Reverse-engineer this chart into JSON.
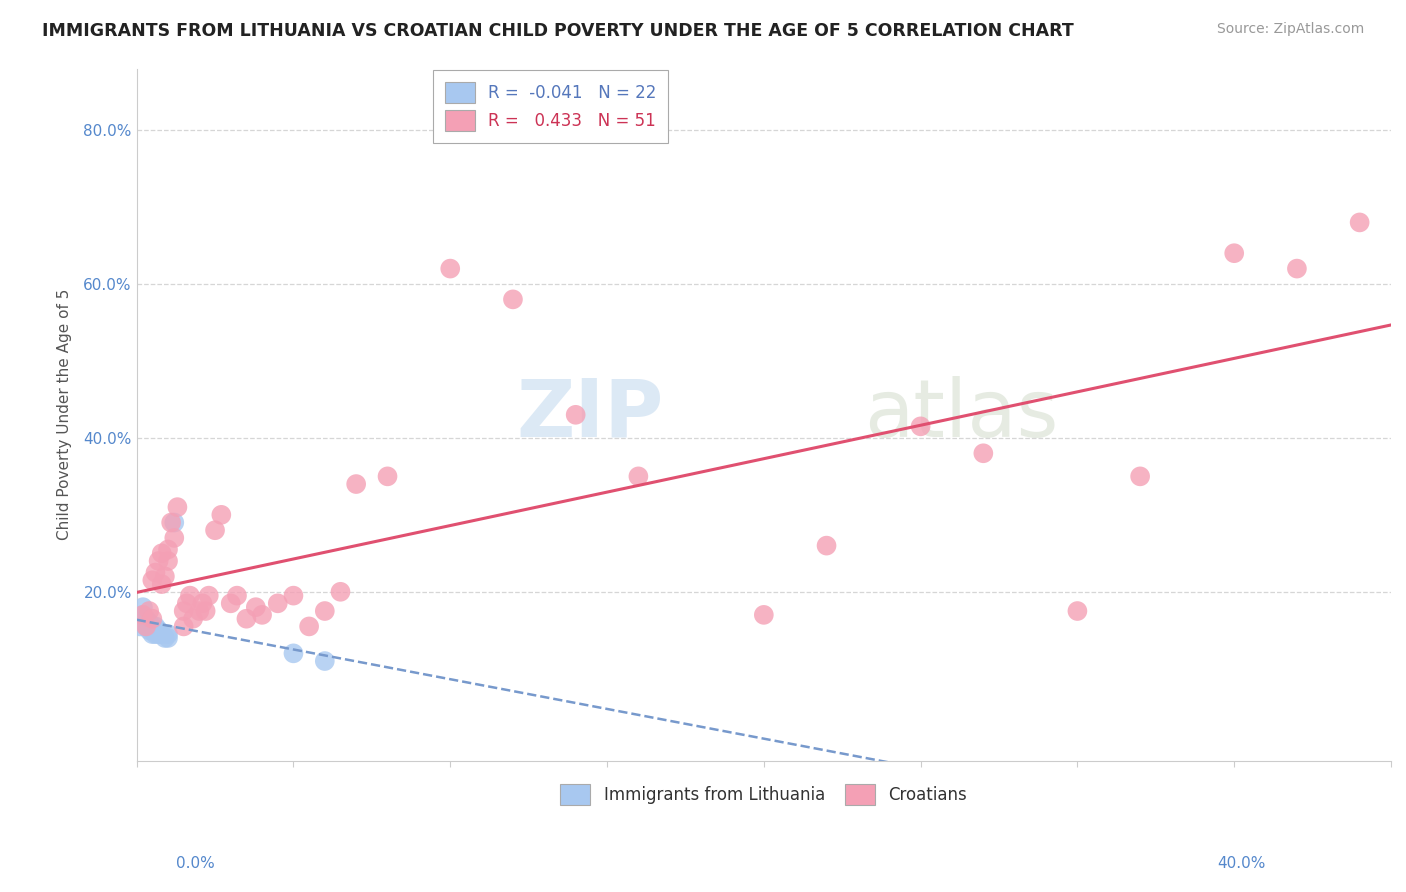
{
  "title": "IMMIGRANTS FROM LITHUANIA VS CROATIAN CHILD POVERTY UNDER THE AGE OF 5 CORRELATION CHART",
  "source": "Source: ZipAtlas.com",
  "ylabel": "Child Poverty Under the Age of 5",
  "yticks": [
    "20.0%",
    "40.0%",
    "60.0%",
    "80.0%"
  ],
  "ytick_vals": [
    0.2,
    0.4,
    0.6,
    0.8
  ],
  "xlim": [
    0.0,
    0.4
  ],
  "ylim": [
    -0.02,
    0.88
  ],
  "legend_entry1": "R =  -0.041   N = 22",
  "legend_entry2": "R =   0.433   N = 51",
  "watermark_zip": "ZIP",
  "watermark_atlas": "atlas",
  "blue_color": "#a8c8f0",
  "pink_color": "#f4a0b5",
  "blue_line_color": "#7799cc",
  "pink_line_color": "#e05070",
  "background_color": "#ffffff",
  "grid_color": "#cccccc",
  "blue_points_x": [
    0.001,
    0.002,
    0.002,
    0.003,
    0.003,
    0.003,
    0.004,
    0.004,
    0.004,
    0.005,
    0.005,
    0.006,
    0.006,
    0.007,
    0.007,
    0.008,
    0.009,
    0.01,
    0.01,
    0.012,
    0.05,
    0.06
  ],
  "blue_points_y": [
    0.155,
    0.17,
    0.18,
    0.155,
    0.16,
    0.165,
    0.15,
    0.155,
    0.16,
    0.145,
    0.15,
    0.145,
    0.155,
    0.145,
    0.15,
    0.145,
    0.14,
    0.14,
    0.145,
    0.29,
    0.12,
    0.11
  ],
  "pink_points_x": [
    0.002,
    0.003,
    0.004,
    0.005,
    0.005,
    0.006,
    0.007,
    0.008,
    0.008,
    0.009,
    0.01,
    0.01,
    0.011,
    0.012,
    0.013,
    0.015,
    0.015,
    0.016,
    0.017,
    0.018,
    0.02,
    0.021,
    0.022,
    0.023,
    0.025,
    0.027,
    0.03,
    0.032,
    0.035,
    0.038,
    0.04,
    0.045,
    0.05,
    0.055,
    0.06,
    0.065,
    0.07,
    0.08,
    0.1,
    0.12,
    0.14,
    0.16,
    0.2,
    0.22,
    0.25,
    0.27,
    0.3,
    0.32,
    0.35,
    0.37,
    0.39
  ],
  "pink_points_y": [
    0.17,
    0.155,
    0.175,
    0.165,
    0.215,
    0.225,
    0.24,
    0.21,
    0.25,
    0.22,
    0.24,
    0.255,
    0.29,
    0.27,
    0.31,
    0.155,
    0.175,
    0.185,
    0.195,
    0.165,
    0.175,
    0.185,
    0.175,
    0.195,
    0.28,
    0.3,
    0.185,
    0.195,
    0.165,
    0.18,
    0.17,
    0.185,
    0.195,
    0.155,
    0.175,
    0.2,
    0.34,
    0.35,
    0.62,
    0.58,
    0.43,
    0.35,
    0.17,
    0.26,
    0.415,
    0.38,
    0.175,
    0.35,
    0.64,
    0.62,
    0.68
  ],
  "legend1_label": "Immigrants from Lithuania",
  "legend2_label": "Croatians"
}
